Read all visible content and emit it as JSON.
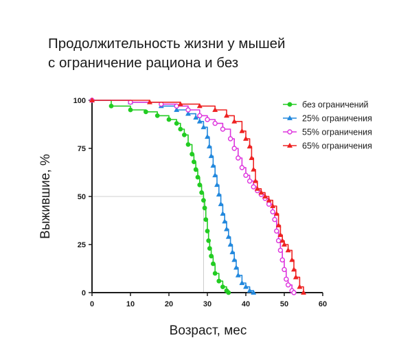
{
  "title": {
    "line1": "Продолжительность жизни у мышей",
    "line2": "с ограничение рациона и без"
  },
  "chart_data": {
    "type": "line",
    "xlabel": "Возраст, мес",
    "ylabel": "Выжившие, %",
    "xlim": [
      0,
      60
    ],
    "ylim": [
      0,
      100
    ],
    "xticks": [
      "0",
      "10",
      "20",
      "30",
      "40",
      "50",
      "60"
    ],
    "yticks": [
      "0",
      "25",
      "50",
      "75",
      "100"
    ],
    "grid": false,
    "legend_position": "top-right",
    "reference_line": {
      "x": 29,
      "y": 50
    },
    "series": [
      {
        "name": "без ограничений",
        "color": "#22cc22",
        "marker": "circle-filled",
        "points": [
          [
            0,
            100
          ],
          [
            5,
            97
          ],
          [
            10,
            95
          ],
          [
            14,
            94
          ],
          [
            17,
            92
          ],
          [
            20,
            90
          ],
          [
            22,
            88
          ],
          [
            23,
            85
          ],
          [
            24,
            82
          ],
          [
            25,
            77
          ],
          [
            26,
            72
          ],
          [
            26.5,
            68
          ],
          [
            27,
            64
          ],
          [
            27.5,
            60
          ],
          [
            28,
            56
          ],
          [
            28.5,
            52
          ],
          [
            29,
            48
          ],
          [
            29.3,
            44
          ],
          [
            29.6,
            38
          ],
          [
            30,
            32
          ],
          [
            30.3,
            27
          ],
          [
            30.6,
            23
          ],
          [
            31,
            19
          ],
          [
            31.5,
            15
          ],
          [
            32,
            10
          ],
          [
            33,
            6
          ],
          [
            34,
            3
          ],
          [
            35,
            1
          ],
          [
            35.5,
            0
          ]
        ]
      },
      {
        "name": "25% ограничения",
        "color": "#2288dd",
        "marker": "triangle-filled",
        "points": [
          [
            0,
            100
          ],
          [
            10,
            99
          ],
          [
            18,
            97
          ],
          [
            22,
            95
          ],
          [
            25,
            93
          ],
          [
            27,
            91
          ],
          [
            28,
            89
          ],
          [
            29,
            86
          ],
          [
            30,
            81
          ],
          [
            30.5,
            76
          ],
          [
            31,
            71
          ],
          [
            31.5,
            66
          ],
          [
            32,
            61
          ],
          [
            32.5,
            56
          ],
          [
            33,
            51
          ],
          [
            33.5,
            46
          ],
          [
            34,
            41
          ],
          [
            34.5,
            37
          ],
          [
            35,
            33
          ],
          [
            35.5,
            29
          ],
          [
            36,
            25
          ],
          [
            36.5,
            21
          ],
          [
            37,
            17
          ],
          [
            37.5,
            13
          ],
          [
            38,
            9
          ],
          [
            39,
            5
          ],
          [
            40,
            3
          ],
          [
            41,
            1
          ],
          [
            42,
            0
          ]
        ]
      },
      {
        "name": "55% ограничения",
        "color": "#dd33dd",
        "marker": "circle-open",
        "points": [
          [
            0,
            100
          ],
          [
            10,
            99
          ],
          [
            18,
            98
          ],
          [
            22,
            97
          ],
          [
            25,
            95
          ],
          [
            28,
            92
          ],
          [
            30,
            90
          ],
          [
            32,
            88
          ],
          [
            34,
            85
          ],
          [
            36,
            80
          ],
          [
            37,
            75
          ],
          [
            38,
            70
          ],
          [
            39,
            65
          ],
          [
            40,
            61
          ],
          [
            41,
            58
          ],
          [
            42,
            55
          ],
          [
            43,
            53
          ],
          [
            44,
            51
          ],
          [
            45,
            49
          ],
          [
            46,
            46
          ],
          [
            47,
            42
          ],
          [
            47.5,
            38
          ],
          [
            48,
            32
          ],
          [
            48.5,
            27
          ],
          [
            49,
            22
          ],
          [
            49.5,
            17
          ],
          [
            50,
            12
          ],
          [
            50.5,
            7
          ],
          [
            51,
            4
          ],
          [
            52,
            1
          ],
          [
            52.5,
            0
          ]
        ]
      },
      {
        "name": "65% ограничения",
        "color": "#ee2222",
        "marker": "triangle-filled",
        "points": [
          [
            0,
            100
          ],
          [
            15,
            99
          ],
          [
            23,
            98
          ],
          [
            28,
            97
          ],
          [
            32,
            95
          ],
          [
            35,
            92
          ],
          [
            37,
            89
          ],
          [
            39,
            84
          ],
          [
            40,
            80
          ],
          [
            41,
            76
          ],
          [
            41.5,
            70
          ],
          [
            42,
            64
          ],
          [
            42.5,
            58
          ],
          [
            43,
            54
          ],
          [
            44,
            52
          ],
          [
            45,
            50
          ],
          [
            46,
            48
          ],
          [
            47,
            45
          ],
          [
            48,
            41
          ],
          [
            48.5,
            35
          ],
          [
            49,
            30
          ],
          [
            49.5,
            27
          ],
          [
            50,
            25
          ],
          [
            51,
            22
          ],
          [
            52,
            17
          ],
          [
            52.5,
            12
          ],
          [
            53,
            8
          ],
          [
            54,
            3
          ],
          [
            55,
            0
          ]
        ]
      }
    ]
  }
}
